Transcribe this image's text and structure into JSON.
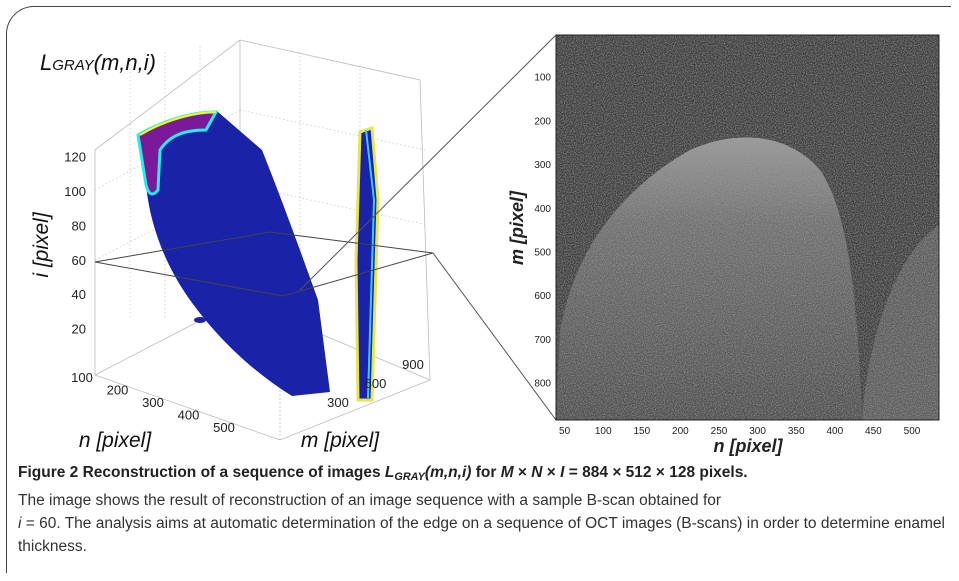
{
  "left_panel": {
    "title": {
      "symbol": "L",
      "subscript": "GRAY",
      "args": "(m,n,i)"
    },
    "i_ticks": [
      20,
      40,
      60,
      80,
      100,
      120
    ],
    "n_ticks": [
      100,
      200,
      300,
      400,
      500
    ],
    "m_ticks": [
      300,
      600,
      900
    ],
    "i_label": "i [pixel]",
    "n_label": "n [pixel]",
    "m_label": "m [pixel]"
  },
  "right_panel": {
    "y_ticks": [
      100,
      200,
      300,
      400,
      500,
      600,
      700,
      800
    ],
    "x_ticks": [
      50,
      100,
      150,
      200,
      250,
      300,
      350,
      400,
      450,
      500
    ],
    "y_label": "m [pixel]",
    "x_label": "n [pixel]"
  },
  "caption": {
    "label": "Figure 2",
    "title": [
      " Reconstruction of a sequence of images ",
      "L",
      "GRAY",
      "(m,n,i)",
      " for ",
      "M",
      " × ",
      "N",
      " × ",
      "I",
      " = 884 × 512 × 128 pixels."
    ],
    "body": [
      "The image shows the result of reconstruction of an image sequence with a sample B-scan obtained for",
      "i",
      " = 60. The analysis aims at automatic determination of the edge on a sequence of OCT images (B-scans) in order to determine enamel thickness."
    ]
  }
}
